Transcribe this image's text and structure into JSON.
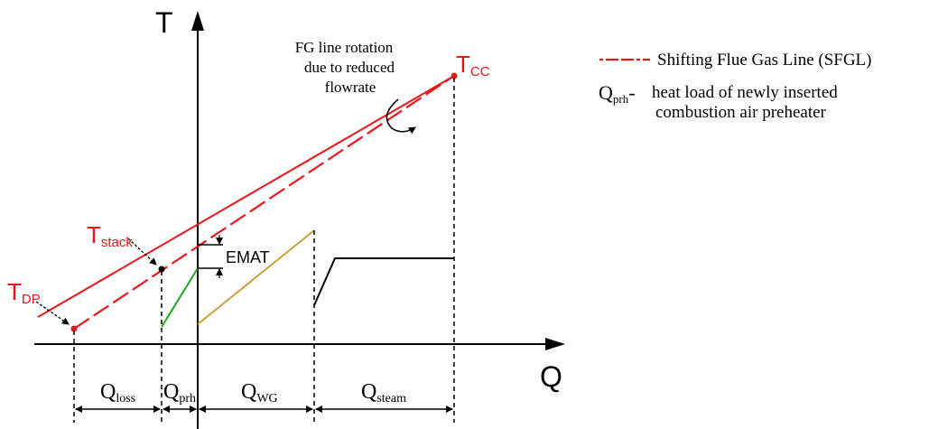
{
  "axes": {
    "y_label": "T",
    "x_label": "Q"
  },
  "points": {
    "t_cc": {
      "main": "T",
      "sub": "CC"
    },
    "t_stack": {
      "main": "T",
      "sub": "stack"
    },
    "t_dp": {
      "main": "T",
      "sub": "DP"
    }
  },
  "annotations": {
    "rotation_note": [
      "FG line rotation",
      "due to reduced",
      "flowrate"
    ],
    "emat": "EMAT"
  },
  "intervals": [
    {
      "main": "Q",
      "sub": "loss"
    },
    {
      "main": "Q",
      "sub": "prh"
    },
    {
      "main": "Q",
      "sub": "WG"
    },
    {
      "main": "Q",
      "sub": "steam"
    }
  ],
  "legend": {
    "sfgl": "Shifting Flue Gas Line (SFGL)",
    "qprh_symbol": {
      "main": "Q",
      "sub": "prh"
    },
    "qprh_dash": "-",
    "qprh_text": [
      "heat load of newly inserted",
      "combustion air preheater"
    ]
  },
  "colors": {
    "flue_gas": "#e8171b",
    "prh": "#1ea51e",
    "wg": "#c9a03a",
    "steam": "#000000",
    "axis": "#000000"
  }
}
